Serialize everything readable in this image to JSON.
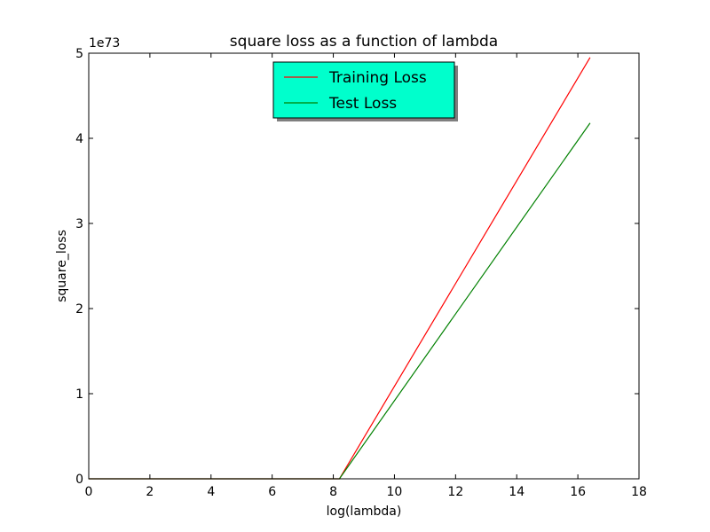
{
  "chart_data": {
    "type": "line",
    "title": "square loss as a function of lambda",
    "xlabel": "log(lambda)",
    "ylabel": "square_loss",
    "y_offset_text": "1e73",
    "xlim": [
      0,
      18
    ],
    "ylim": [
      0,
      5
    ],
    "x_ticks": [
      0,
      2,
      4,
      6,
      8,
      10,
      12,
      14,
      16,
      18
    ],
    "y_ticks": [
      0,
      1,
      2,
      3,
      4,
      5
    ],
    "x_tick_labels": [
      "0",
      "2",
      "4",
      "6",
      "8",
      "10",
      "12",
      "14",
      "16",
      "18"
    ],
    "y_tick_labels": [
      "0",
      "1",
      "2",
      "3",
      "4",
      "5"
    ],
    "grid": false,
    "legend_position": "top-center",
    "legend_background": "#00FFCC",
    "series": [
      {
        "name": "Training Loss",
        "color": "#FF0000",
        "x": [
          0,
          2,
          4,
          6,
          8.2,
          16.4
        ],
        "y": [
          0,
          0,
          0,
          0,
          0,
          4.95
        ]
      },
      {
        "name": "Test Loss",
        "color": "#008000",
        "x": [
          0,
          2,
          4,
          6,
          8.2,
          16.4
        ],
        "y": [
          0,
          0,
          0,
          0,
          0,
          4.18
        ]
      }
    ]
  }
}
